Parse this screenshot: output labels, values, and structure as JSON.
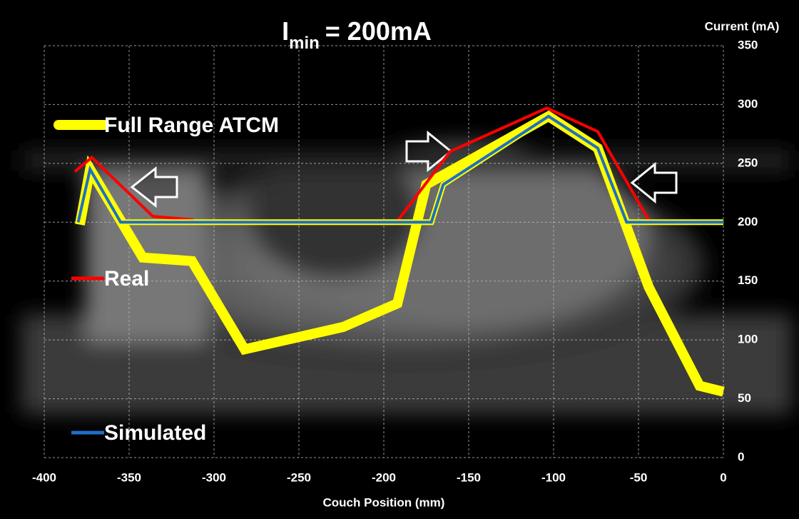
{
  "chart_data": {
    "type": "line",
    "title": "I",
    "title_subscript": "min",
    "title_suffix": "= 200mA",
    "y_label": "Current (mA)",
    "x_label": "Couch Position (mm)",
    "xlim": [
      -400,
      0
    ],
    "ylim": [
      0,
      350
    ],
    "xticks": [
      -400,
      -350,
      -300,
      -250,
      -200,
      -150,
      -100,
      -50,
      0
    ],
    "yticks": [
      0,
      50,
      100,
      150,
      200,
      250,
      300,
      350
    ],
    "grid": true,
    "series": [
      {
        "name": "Full Range ATCM",
        "color": "#ffff00",
        "x": [
          -379,
          -373,
          -342,
          -313,
          -282,
          -224,
          -192,
          -175,
          -103,
          -74,
          -44,
          -14,
          0
        ],
        "values": [
          198,
          245,
          170,
          167,
          92,
          111,
          131,
          232,
          290,
          263,
          145,
          61,
          56
        ]
      },
      {
        "name": "Real",
        "color": "#ff0000",
        "x": [
          -382,
          -372,
          -336,
          -312,
          null,
          -192,
          -161,
          -104,
          -74,
          -44
        ],
        "values": [
          243,
          255,
          205,
          202,
          null,
          201,
          260,
          297,
          277,
          202
        ]
      },
      {
        "name": "Simulated",
        "color": "#1f6fc4",
        "x": [
          -380,
          -373,
          -355,
          -172,
          -165,
          -103,
          -74,
          -57,
          0
        ],
        "values": [
          200,
          245,
          200,
          200,
          232,
          290,
          263,
          200,
          200
        ]
      }
    ]
  }
}
